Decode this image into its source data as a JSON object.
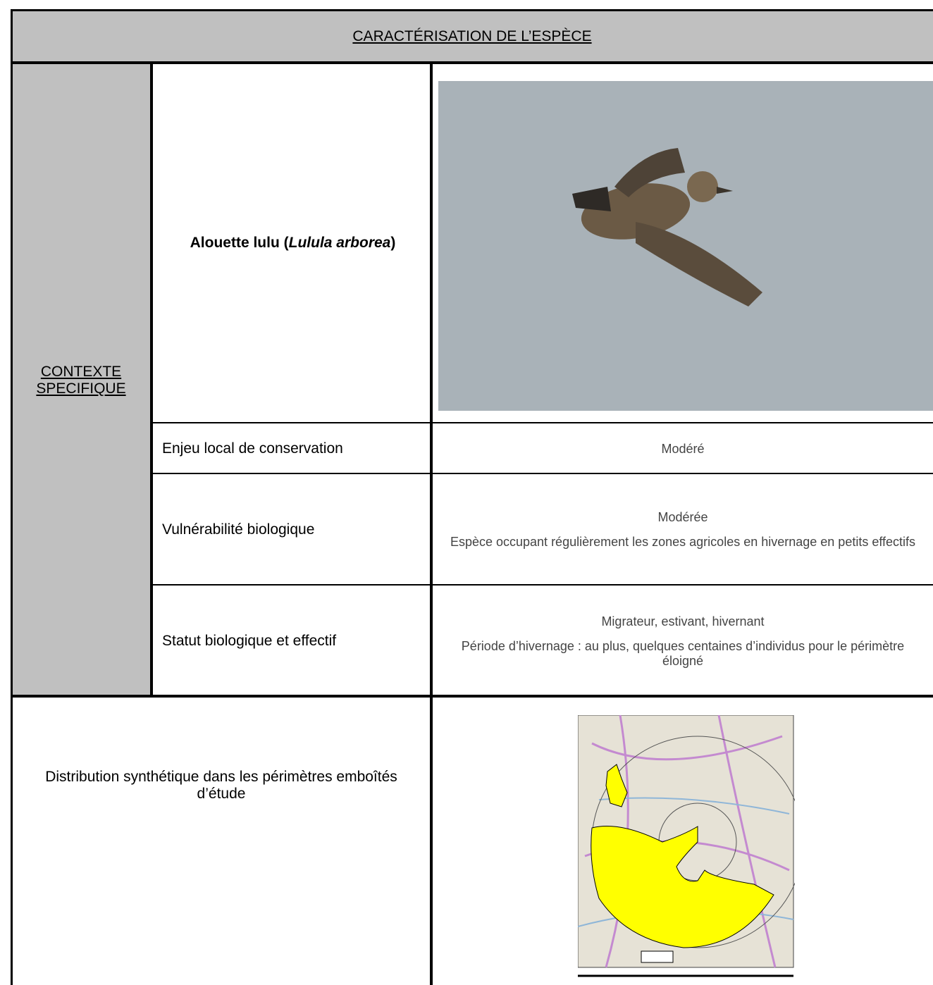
{
  "header": {
    "title": "CARACTÉRISATION DE L’ESPÈCE"
  },
  "section": {
    "label": "CONTEXTE SPECIFIQUE"
  },
  "species": {
    "name_parts": [
      "Alouette lulu (",
      "Lulula arborea",
      ")"
    ]
  },
  "rows": [
    {
      "label": "Enjeu local de conservation",
      "value": [
        "Modéré"
      ]
    },
    {
      "label": "Vulnérabilité biologique",
      "value": [
        "Modérée",
        "Espèce occupant régulièrement les zones agricoles en hivernage en petits effectifs"
      ]
    },
    {
      "label": "Statut biologique et effectif",
      "value": [
        "Migrateur, estivant, hivernant",
        "Période d’hivernage : au plus, quelques centaines d’individus pour le périmètre éloigné"
      ]
    }
  ],
  "distribution": {
    "label": "Distribution synthétique dans les périmètres emboîtés d’étude"
  }
}
